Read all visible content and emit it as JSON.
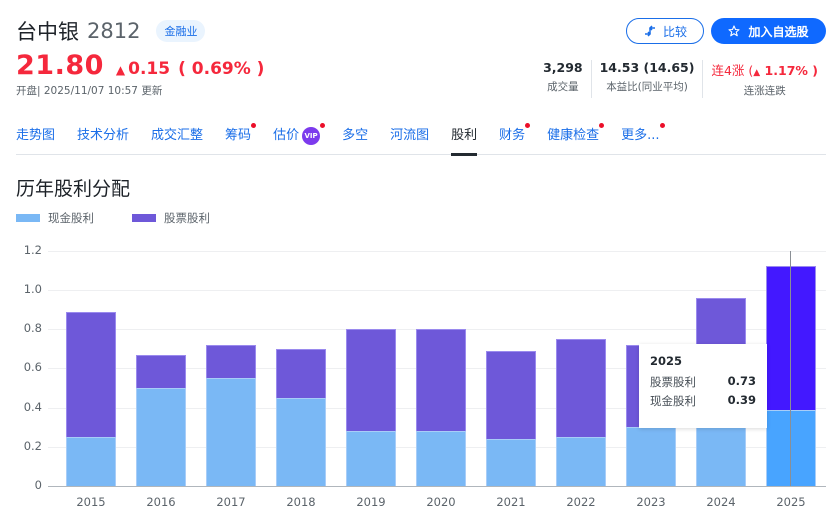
{
  "header": {
    "stock_name": "台中银",
    "stock_code": "2812",
    "sector_badge": "金融业",
    "price": "21.80",
    "change": "0.15",
    "change_pct": "( 0.69% )",
    "update_text": "开盘| 2025/11/07 10:57 更新",
    "colors": {
      "up": "#f5283c",
      "accent": "#0f69ff"
    }
  },
  "actions": {
    "compare_label": "比较",
    "compare_icon": "compare-arrows-icon",
    "watchlist_label": "加入自选股",
    "watchlist_icon": "star-icon"
  },
  "stats": [
    {
      "value": "3,298",
      "label": "成交量"
    },
    {
      "value": "14.53 (14.65)",
      "label": "本益比(同业平均)"
    },
    {
      "value_prefix": "连4涨 (",
      "value_arrow": "▲",
      "value_main": " 1.17% )",
      "label": "连涨连跌"
    }
  ],
  "tabs": [
    {
      "label": "走势图",
      "dot": false,
      "active": false
    },
    {
      "label": "技术分析",
      "dot": false,
      "active": false
    },
    {
      "label": "成交汇整",
      "dot": false,
      "active": false
    },
    {
      "label": "筹码",
      "dot": true,
      "active": false
    },
    {
      "label": "估价",
      "dot": true,
      "active": false,
      "vip": "VIP"
    },
    {
      "label": "多空",
      "dot": false,
      "active": false
    },
    {
      "label": "河流图",
      "dot": false,
      "active": false
    },
    {
      "label": "股利",
      "dot": false,
      "active": true
    },
    {
      "label": "财务",
      "dot": true,
      "active": false
    },
    {
      "label": "健康检查",
      "dot": true,
      "active": false
    },
    {
      "label": "更多...",
      "dot": true,
      "active": false
    }
  ],
  "section_title": "历年股利分配",
  "chart_data": {
    "type": "bar",
    "stacked": true,
    "title": "历年股利分配",
    "xlabel": "",
    "ylabel": "",
    "ylim": [
      0,
      1.2
    ],
    "yticks": [
      "0",
      "0.2",
      "0.4",
      "0.6",
      "0.8",
      "1.0",
      "1.2"
    ],
    "grid": true,
    "legend_position": "top-left",
    "categories": [
      "2015",
      "2016",
      "2017",
      "2018",
      "2019",
      "2020",
      "2021",
      "2022",
      "2023",
      "2024",
      "2025"
    ],
    "series": [
      {
        "name": "现金股利",
        "color": "#7ab8f5",
        "values": [
          0.25,
          0.5,
          0.55,
          0.45,
          0.28,
          0.28,
          0.24,
          0.25,
          0.3,
          0.4,
          0.39
        ]
      },
      {
        "name": "股票股利",
        "color": "#6e58d9",
        "values": [
          0.64,
          0.17,
          0.17,
          0.25,
          0.52,
          0.52,
          0.45,
          0.5,
          0.42,
          0.56,
          0.73
        ]
      }
    ],
    "highlighted_category": "2025",
    "tooltip": {
      "title": "2025",
      "rows": [
        {
          "label": "股票股利",
          "value": "0.73"
        },
        {
          "label": "现金股利",
          "value": "0.39"
        }
      ]
    }
  }
}
